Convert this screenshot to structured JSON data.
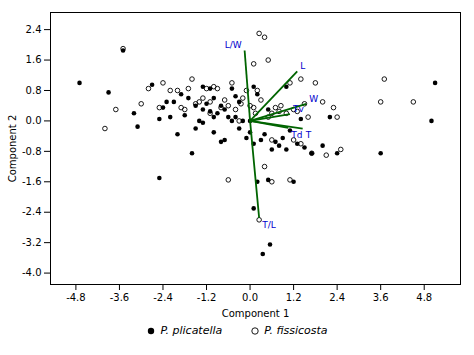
{
  "chart_data": {
    "type": "scatter",
    "xlabel": "Component 1",
    "ylabel": "Component 2",
    "xlim": [
      -5.5,
      5.8
    ],
    "ylim": [
      -4.3,
      2.85
    ],
    "xticks": [
      -4.8,
      -3.6,
      -2.4,
      -1.2,
      {
        "value": 0,
        "label": "0.0"
      },
      1.2,
      2.4,
      3.6,
      4.8
    ],
    "yticks": [
      {
        "value": -4,
        "label": "-4.0"
      },
      -3.2,
      -2.4,
      -1.6,
      -0.8,
      {
        "value": 0,
        "label": "0.0"
      },
      0.8,
      1.6,
      2.4
    ],
    "grid": false,
    "legend": "bottom",
    "series": [
      {
        "name": "P. plicatella",
        "color": "#000000",
        "marker": "filled_circle",
        "values": [
          [
            -4.7,
            1.0
          ],
          [
            -3.9,
            0.75
          ],
          [
            -3.5,
            1.85
          ],
          [
            -3.2,
            0.2
          ],
          [
            -3.1,
            -0.15
          ],
          [
            -2.7,
            0.95
          ],
          [
            -2.5,
            -1.5
          ],
          [
            -2.5,
            0.05
          ],
          [
            -2.4,
            0.35
          ],
          [
            -2.3,
            0.5
          ],
          [
            -2.2,
            0.1
          ],
          [
            -2.1,
            0.5
          ],
          [
            -2.0,
            -0.35
          ],
          [
            -1.9,
            0.7
          ],
          [
            -1.8,
            0.15
          ],
          [
            -1.7,
            0.6
          ],
          [
            -1.6,
            -0.85
          ],
          [
            -1.5,
            0.4
          ],
          [
            -1.5,
            -0.2
          ],
          [
            -1.4,
            0.0
          ],
          [
            -1.3,
            0.9
          ],
          [
            -1.3,
            0.3
          ],
          [
            -1.3,
            -0.05
          ],
          [
            -1.2,
            0.45
          ],
          [
            -1.1,
            0.85
          ],
          [
            -1.1,
            0.25
          ],
          [
            -1.0,
            0.6
          ],
          [
            -1.0,
            0.1
          ],
          [
            -1.0,
            -0.3
          ],
          [
            -0.9,
            0.2
          ],
          [
            -0.8,
            0.4
          ],
          [
            -0.8,
            -0.55
          ],
          [
            -0.7,
            0.3
          ],
          [
            -0.7,
            -0.5
          ],
          [
            -0.6,
            0.1
          ],
          [
            -0.5,
            0.85
          ],
          [
            -0.5,
            0.0
          ],
          [
            -0.4,
            0.65
          ],
          [
            -0.4,
            0.1
          ],
          [
            -0.3,
            0.5
          ],
          [
            -0.3,
            -0.2
          ],
          [
            -0.2,
            0.0
          ],
          [
            -0.1,
            -0.45
          ],
          [
            0.0,
            0.0
          ],
          [
            0.0,
            -0.3
          ],
          [
            0.1,
            0.9
          ],
          [
            0.1,
            -0.6
          ],
          [
            0.2,
            0.7
          ],
          [
            0.3,
            -0.5
          ],
          [
            0.4,
            -0.35
          ],
          [
            0.5,
            -1.55
          ],
          [
            0.5,
            0.3
          ],
          [
            0.6,
            -0.75
          ],
          [
            0.7,
            -0.55
          ],
          [
            0.8,
            -0.65
          ],
          [
            0.9,
            -0.45
          ],
          [
            1.0,
            -0.75
          ],
          [
            1.0,
            0.9
          ],
          [
            1.1,
            -0.25
          ],
          [
            1.2,
            -1.6
          ],
          [
            1.3,
            -0.6
          ],
          [
            1.4,
            0.05
          ],
          [
            1.5,
            -0.7
          ],
          [
            1.7,
            -0.85
          ],
          [
            2.0,
            -0.65
          ],
          [
            2.4,
            -0.85
          ],
          [
            3.6,
            -0.85
          ],
          [
            5.0,
            0.0
          ],
          [
            5.1,
            1.0
          ],
          [
            0.35,
            -3.5
          ],
          [
            0.1,
            -2.3
          ],
          [
            0.55,
            -3.25
          ],
          [
            2.2,
            0.1
          ],
          [
            0.2,
            -1.6
          ]
        ]
      },
      {
        "name": "P. fissicosta",
        "color": "#000000",
        "marker": "open_circle",
        "values": [
          [
            -4.0,
            -0.2
          ],
          [
            -3.7,
            0.3
          ],
          [
            -3.5,
            1.9
          ],
          [
            -3.0,
            0.45
          ],
          [
            -2.8,
            0.85
          ],
          [
            -2.5,
            0.35
          ],
          [
            -2.4,
            1.0
          ],
          [
            -2.2,
            0.8
          ],
          [
            -2.0,
            0.8
          ],
          [
            -1.9,
            0.35
          ],
          [
            -1.8,
            0.3
          ],
          [
            -1.7,
            0.85
          ],
          [
            -1.6,
            1.1
          ],
          [
            -1.5,
            0.45
          ],
          [
            -1.4,
            0.5
          ],
          [
            -1.3,
            0.6
          ],
          [
            -1.2,
            0.85
          ],
          [
            -1.1,
            0.5
          ],
          [
            -1.1,
            0.2
          ],
          [
            -1.0,
            0.9
          ],
          [
            -0.9,
            0.85
          ],
          [
            -0.8,
            0.35
          ],
          [
            -0.7,
            0.55
          ],
          [
            -0.6,
            0.4
          ],
          [
            -0.5,
            1.0
          ],
          [
            -0.4,
            0.3
          ],
          [
            -0.3,
            0.0
          ],
          [
            -0.25,
            0.45
          ],
          [
            -0.2,
            0.6
          ],
          [
            -0.1,
            0.8
          ],
          [
            0.0,
            0.4
          ],
          [
            0.1,
            0.35
          ],
          [
            0.1,
            1.5
          ],
          [
            0.15,
            0.2
          ],
          [
            0.2,
            0.8
          ],
          [
            0.25,
            2.3
          ],
          [
            0.3,
            0.55
          ],
          [
            0.4,
            2.2
          ],
          [
            0.5,
            0.1
          ],
          [
            0.5,
            1.6
          ],
          [
            0.6,
            0.2
          ],
          [
            0.6,
            -0.5
          ],
          [
            0.7,
            0.35
          ],
          [
            0.8,
            0.25
          ],
          [
            0.85,
            0.4
          ],
          [
            1.0,
            0.2
          ],
          [
            1.1,
            1.0
          ],
          [
            1.2,
            0.3
          ],
          [
            1.2,
            -0.5
          ],
          [
            1.3,
            0.25
          ],
          [
            1.4,
            -0.6
          ],
          [
            1.4,
            1.1
          ],
          [
            1.5,
            0.45
          ],
          [
            1.6,
            0.1
          ],
          [
            1.7,
            -0.85
          ],
          [
            1.8,
            1.0
          ],
          [
            2.0,
            0.5
          ],
          [
            2.1,
            -0.9
          ],
          [
            2.3,
            0.35
          ],
          [
            2.4,
            0.1
          ],
          [
            2.5,
            -0.75
          ],
          [
            3.6,
            0.5
          ],
          [
            3.7,
            1.1
          ],
          [
            4.5,
            0.5
          ],
          [
            0.25,
            -2.6
          ],
          [
            -0.6,
            -1.55
          ],
          [
            0.6,
            -1.6
          ],
          [
            1.1,
            -1.55
          ],
          [
            0.4,
            -1.2
          ]
        ]
      }
    ],
    "vectors": {
      "color": "#006400",
      "label_color": "#0000CD",
      "names": [
        "L/W",
        "L",
        "W",
        "Tv",
        "Td",
        "T",
        "T/L"
      ],
      "x": [
        -0.15,
        1.3,
        1.55,
        1.1,
        1.05,
        1.45,
        0.25
      ],
      "y": [
        1.85,
        1.3,
        0.45,
        0.18,
        -0.18,
        -0.2,
        -2.55
      ]
    }
  }
}
